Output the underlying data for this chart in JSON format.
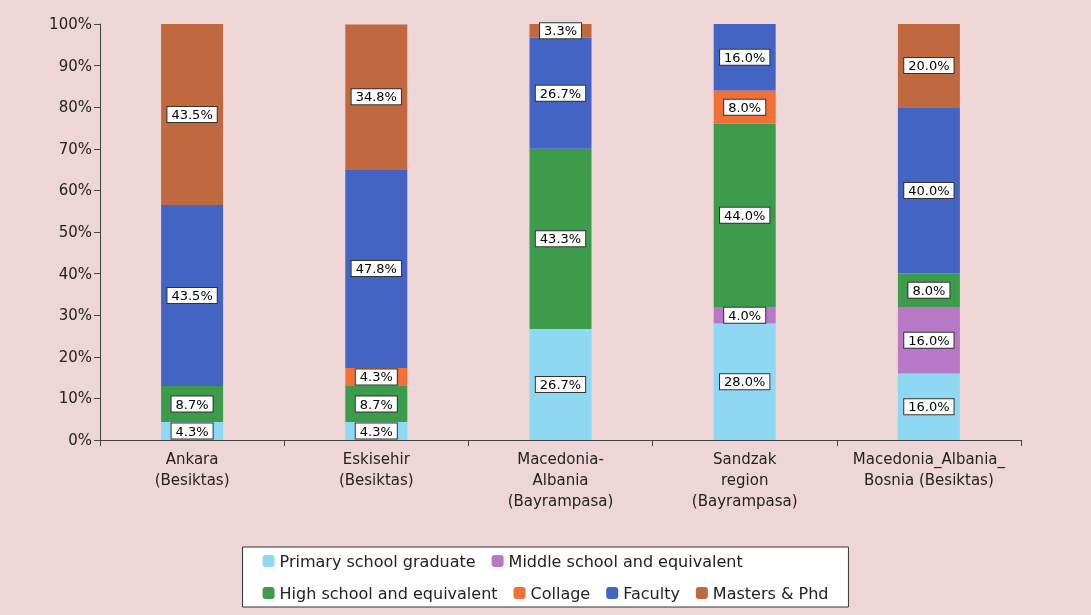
{
  "chart_data": {
    "type": "bar",
    "stacked": true,
    "grid": false,
    "legend": "bottom",
    "categories": [
      "Ankara\n(Besiktas)",
      "Eskisehir\n(Besiktas)",
      "Macedonia-\nAlbania\n(Bayrampasa)",
      "Sandzak\nregion\n(Bayrampasa)",
      "Macedonia_Albania_\nBosnia (Besiktas)"
    ],
    "ylim": [
      0,
      100
    ],
    "yticks": [
      {
        "value": 0,
        "label": "0%"
      },
      {
        "value": 10,
        "label": "10%"
      },
      {
        "value": 20,
        "label": "20%"
      },
      {
        "value": 30,
        "label": "30%"
      },
      {
        "value": 40,
        "label": "40%"
      },
      {
        "value": 50,
        "label": "50%"
      },
      {
        "value": 60,
        "label": "60%"
      },
      {
        "value": 70,
        "label": "70%"
      },
      {
        "value": 80,
        "label": "80%"
      },
      {
        "value": 90,
        "label": "90%"
      },
      {
        "value": 100,
        "label": "100%"
      }
    ],
    "series": [
      {
        "name": "Primary school graduate",
        "color": "#8fd8f4",
        "values": [
          4.3,
          4.3,
          26.7,
          28.0,
          16.0
        ],
        "value_labels": [
          "4.3%",
          "4.3%",
          "26.7%",
          "28.0%",
          "16.0%"
        ]
      },
      {
        "name": "Middle school and equivalent",
        "color": "#b878c8",
        "values": [
          null,
          null,
          null,
          4.0,
          16.0
        ],
        "value_labels": [
          null,
          null,
          null,
          "4.0%",
          "16.0%"
        ]
      },
      {
        "name": "High school and equivalent",
        "color": "#3c9c4c",
        "values": [
          8.7,
          8.7,
          43.3,
          44.0,
          8.0
        ],
        "value_labels": [
          "8.7%",
          "8.7%",
          "43.3%",
          "44.0%",
          "8.0%"
        ]
      },
      {
        "name": "Collage",
        "color": "#f07038",
        "values": [
          null,
          4.3,
          null,
          8.0,
          null
        ],
        "value_labels": [
          null,
          "4.3%",
          null,
          "8.0%",
          null
        ]
      },
      {
        "name": "Faculty",
        "color": "#4464c4",
        "values": [
          43.5,
          47.8,
          26.7,
          16.0,
          40.0
        ],
        "value_labels": [
          "43.5%",
          "47.8%",
          "26.7%",
          "16.0%",
          "40.0%"
        ]
      },
      {
        "name": "Masters & Phd",
        "color": "#c06840",
        "values": [
          43.5,
          34.8,
          3.3,
          null,
          20.0
        ],
        "value_labels": [
          "43.5%",
          "34.8%",
          "3.3%",
          null,
          "20.0%"
        ]
      }
    ]
  }
}
